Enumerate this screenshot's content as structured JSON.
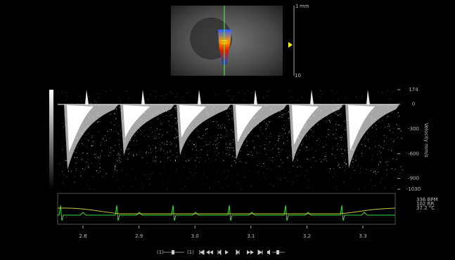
{
  "bmode": {
    "scale_unit": "mm",
    "scale_top": "1",
    "scale_bottom": "10"
  },
  "velocity_axis": {
    "title": "Velocity mm/s",
    "ticks": [
      174,
      0,
      -300,
      -600,
      -900,
      -1030
    ]
  },
  "time_axis": {
    "labels": [
      "2.8",
      "2.9",
      "3.0",
      "3.1",
      "3.2",
      "3.3"
    ]
  },
  "physio": {
    "heart_rate": "336 BPM",
    "resp": "102 RR",
    "temperature": "37.2 °C"
  },
  "controls": {
    "left_label": "(1)",
    "right_label": "(1)"
  }
}
